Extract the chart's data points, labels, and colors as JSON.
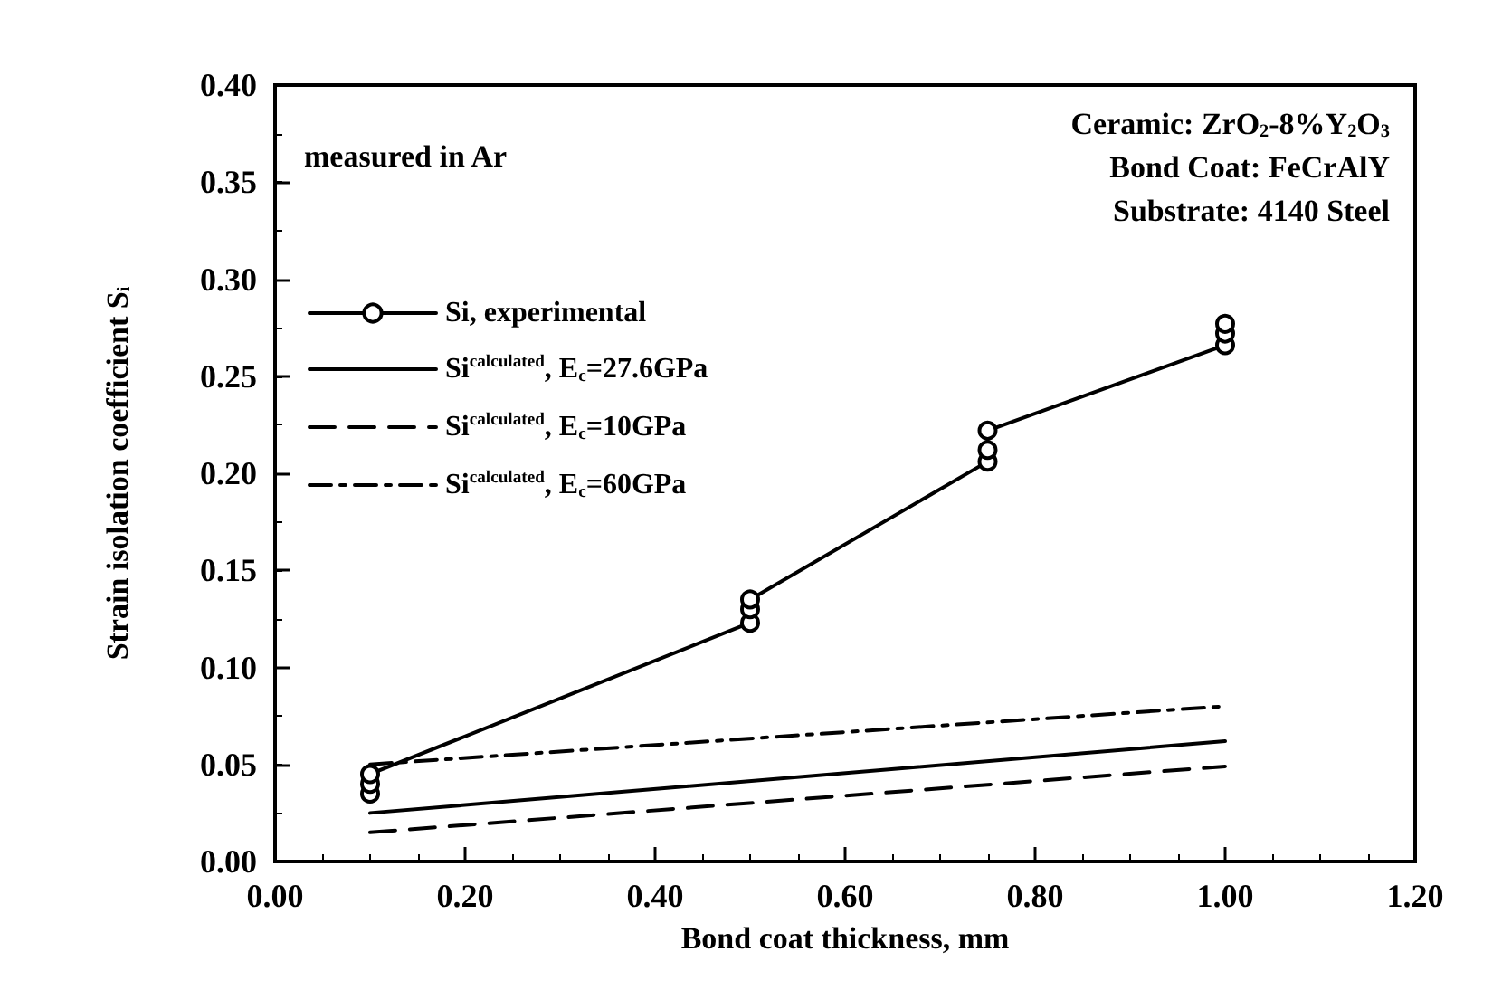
{
  "chart_data": {
    "type": "line",
    "xlabel": "Bond coat thickness, mm",
    "ylabel": "Strain isolation coefficient S$_{i}$",
    "xlim": [
      0,
      1.2
    ],
    "xticks": [
      {
        "value": 0,
        "label": "0.00"
      },
      {
        "value": 0.2,
        "label": "0.20"
      },
      {
        "value": 0.4,
        "label": "0.40"
      },
      {
        "value": 0.6,
        "label": "0.60"
      },
      {
        "value": 0.8,
        "label": "0.80"
      },
      {
        "value": 1,
        "label": "1.00"
      },
      {
        "value": 1.2,
        "label": "1.20"
      }
    ],
    "ylim": [
      0,
      0.4
    ],
    "yticks": [
      {
        "value": 0,
        "label": "0.00"
      },
      {
        "value": 0.05,
        "label": "0.05"
      },
      {
        "value": 0.1,
        "label": "0.10"
      },
      {
        "value": 0.15,
        "label": "0.15"
      },
      {
        "value": 0.2,
        "label": "0.20"
      },
      {
        "value": 0.25,
        "label": "0.25"
      },
      {
        "value": 0.3,
        "label": "0.30"
      },
      {
        "value": 0.35,
        "label": "0.35"
      },
      {
        "value": 0.4,
        "label": "0.40"
      }
    ],
    "legend": "top left",
    "annotations": [
      "measured in Ar",
      "Ceramic: ZrO$_{2}$-8%Y$_{2}$O$_{3}$",
      "Bond Coat: FeCrAlY",
      "Substrate: 4140 Steel"
    ],
    "series": [
      {
        "name": "Si, experimental",
        "color": "#000000",
        "marker": "circle",
        "line_style": "solid",
        "x": [
          0.1,
          0.1,
          0.1,
          0.5,
          0.5,
          0.5,
          0.75,
          0.75,
          0.75,
          1.0,
          1.0,
          1.0
        ],
        "values": [
          0.035,
          0.04,
          0.045,
          0.123,
          0.13,
          0.135,
          0.206,
          0.212,
          0.222,
          0.266,
          0.272,
          0.277
        ]
      },
      {
        "name": "Si$^{calculated}$, E$_{c}$=27.6GPa",
        "color": "#000000",
        "marker": "none",
        "line_style": "solid",
        "x": [
          0.1,
          1.0
        ],
        "values": [
          0.025,
          0.062
        ]
      },
      {
        "name": "Si$^{calculated}$, E$_{c}$=10GPa",
        "color": "#000000",
        "marker": "none",
        "line_style": "dashed",
        "x": [
          0.1,
          1.0
        ],
        "values": [
          0.015,
          0.049
        ]
      },
      {
        "name": "Si$^{calculated}$, E$_{c}$=60GPa",
        "color": "#000000",
        "marker": "none",
        "line_style": "dashdot",
        "x": [
          0.1,
          1.0
        ],
        "values": [
          0.05,
          0.08
        ]
      }
    ]
  }
}
